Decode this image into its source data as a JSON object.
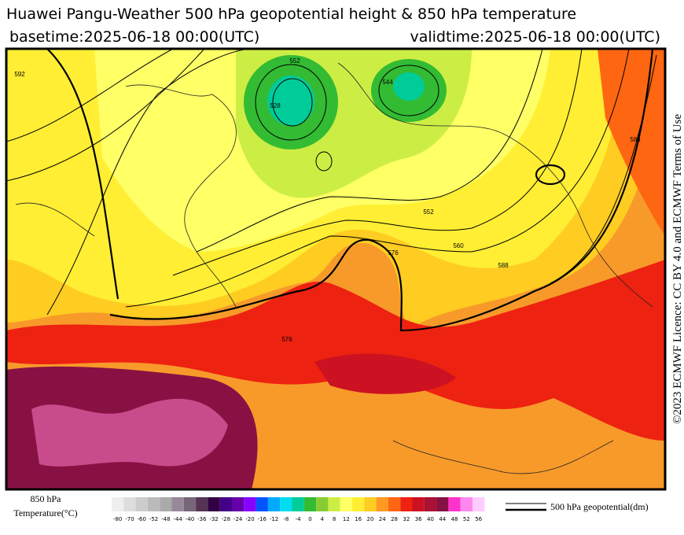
{
  "header": {
    "title": "Huawei Pangu-Weather 500 hPa geopotential height & 850 hPa temperature",
    "basetime": "basetime:2025-06-18 00:00(UTC)",
    "validtime": "validtime:2025-06-18 00:00(UTC)"
  },
  "license": "©2023 ECMWF Licence: CC BY 4.0 and ECMWF Terms of Use",
  "colorbar": {
    "title_line1": "850 hPa",
    "title_line2": "Temperature(°C)",
    "ticks": [
      -80,
      -70,
      -60,
      -52,
      -48,
      -44,
      -40,
      -36,
      -32,
      -28,
      -24,
      -20,
      -16,
      -12,
      -8,
      -4,
      0,
      4,
      8,
      12,
      16,
      20,
      24,
      28,
      32,
      36,
      40,
      44,
      48,
      52,
      56
    ],
    "colors": [
      "#eeeeee",
      "#dddddd",
      "#cccccc",
      "#bbbbbb",
      "#aaaaaa",
      "#998899",
      "#776677",
      "#553355",
      "#330044",
      "#440088",
      "#6600aa",
      "#8800ff",
      "#0055ff",
      "#00aaff",
      "#00ddee",
      "#00cc99",
      "#33bb33",
      "#88cc33",
      "#ccee44",
      "#ffff66",
      "#ffee33",
      "#ffcc22",
      "#ff9922",
      "#ff6611",
      "#ee2211",
      "#cc1122",
      "#aa1133",
      "#881144",
      "#ff33cc",
      "#ff88ee",
      "#ffccff"
    ]
  },
  "contour_legend": "500 hPa geopotential(dm)",
  "contour_labels": [
    "592",
    "552",
    "528",
    "544",
    "552",
    "576",
    "560",
    "588",
    "584",
    "576"
  ]
}
